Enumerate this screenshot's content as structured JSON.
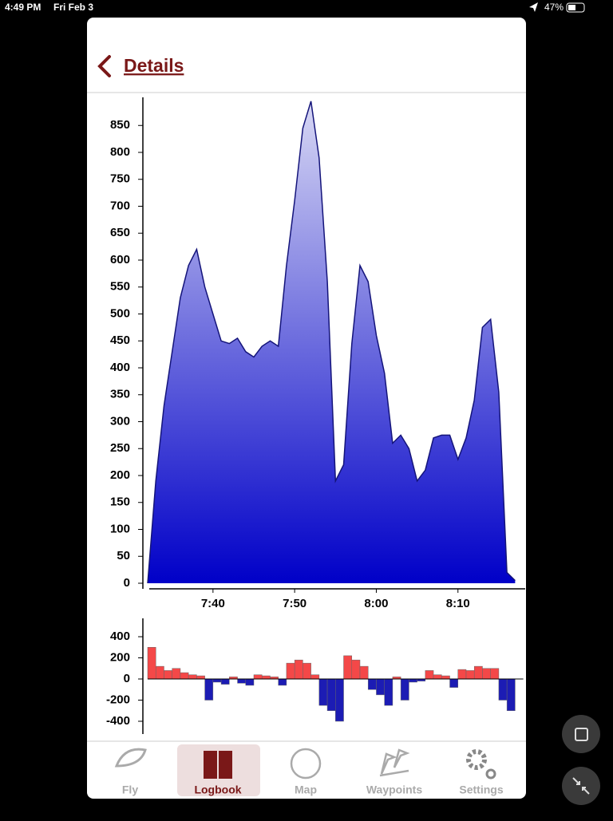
{
  "status_bar": {
    "time": "4:49 PM",
    "date": "Fri Feb 3",
    "battery": "47%"
  },
  "header": {
    "title": "Details"
  },
  "chart_data": [
    {
      "type": "area",
      "x": [
        "7:32",
        "7:33",
        "7:34",
        "7:35",
        "7:36",
        "7:37",
        "7:38",
        "7:39",
        "7:40",
        "7:41",
        "7:42",
        "7:43",
        "7:44",
        "7:45",
        "7:46",
        "7:47",
        "7:48",
        "7:49",
        "7:50",
        "7:51",
        "7:52",
        "7:53",
        "7:54",
        "7:55",
        "7:56",
        "7:57",
        "7:58",
        "7:59",
        "8:00",
        "8:01",
        "8:02",
        "8:03",
        "8:04",
        "8:05",
        "8:06",
        "8:07",
        "8:08",
        "8:09",
        "8:10",
        "8:11",
        "8:12",
        "8:13",
        "8:14",
        "8:15",
        "8:16",
        "8:17"
      ],
      "values": [
        0,
        190,
        330,
        430,
        530,
        590,
        620,
        550,
        500,
        450,
        445,
        455,
        430,
        420,
        440,
        450,
        440,
        590,
        710,
        845,
        895,
        790,
        560,
        190,
        220,
        445,
        590,
        560,
        460,
        390,
        260,
        275,
        250,
        190,
        210,
        270,
        275,
        275,
        230,
        270,
        340,
        475,
        490,
        355,
        20,
        5
      ],
      "line_color": "#14147a",
      "fill_top": "#d8d8f4",
      "fill_bottom": "#0000c8",
      "xlim": [
        "7:32",
        "8:18"
      ],
      "xticks": [
        "7:40",
        "7:50",
        "8:00",
        "8:10"
      ],
      "ylim": [
        0,
        900
      ],
      "yticks": [
        0,
        50,
        100,
        150,
        200,
        250,
        300,
        350,
        400,
        450,
        500,
        550,
        600,
        650,
        700,
        750,
        800,
        850
      ]
    },
    {
      "type": "signed-bar",
      "x": [
        "7:32",
        "7:33",
        "7:34",
        "7:35",
        "7:36",
        "7:37",
        "7:38",
        "7:39",
        "7:40",
        "7:41",
        "7:42",
        "7:43",
        "7:44",
        "7:45",
        "7:46",
        "7:47",
        "7:48",
        "7:49",
        "7:50",
        "7:51",
        "7:52",
        "7:53",
        "7:54",
        "7:55",
        "7:56",
        "7:57",
        "7:58",
        "7:59",
        "8:00",
        "8:01",
        "8:02",
        "8:03",
        "8:04",
        "8:05",
        "8:06",
        "8:07",
        "8:08",
        "8:09",
        "8:10",
        "8:11",
        "8:12",
        "8:13",
        "8:14",
        "8:15",
        "8:16",
        "8:17"
      ],
      "values": [
        300,
        120,
        80,
        100,
        60,
        40,
        30,
        -200,
        -30,
        -50,
        20,
        -40,
        -60,
        40,
        30,
        20,
        -60,
        150,
        180,
        150,
        40,
        -250,
        -300,
        -400,
        220,
        180,
        120,
        -100,
        -150,
        -250,
        20,
        -200,
        -30,
        -20,
        80,
        40,
        30,
        -80,
        90,
        80,
        120,
        100,
        100,
        -200,
        -300,
        0
      ],
      "positive_color": "#f44848",
      "negative_color": "#1c1cb4",
      "xlim": [
        "7:32",
        "8:18"
      ],
      "ylim": [
        -520,
        570
      ],
      "yticks": [
        400,
        200,
        0,
        -200,
        -400
      ]
    }
  ],
  "tabs": [
    {
      "label": "Fly"
    },
    {
      "label": "Logbook"
    },
    {
      "label": "Map"
    },
    {
      "label": "Waypoints"
    },
    {
      "label": "Settings"
    }
  ],
  "active_tab": 1
}
